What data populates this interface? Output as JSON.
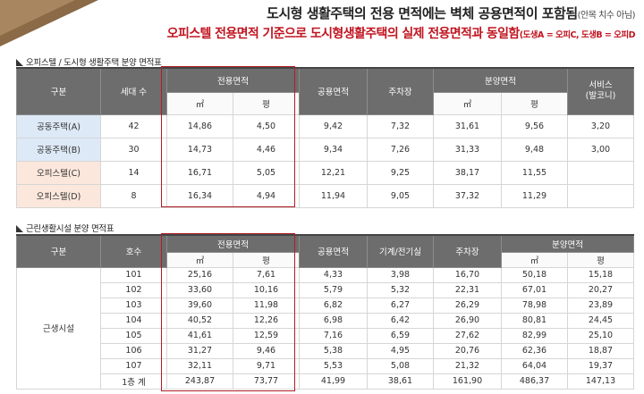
{
  "header": {
    "line1": "도시형 생활주택의 전용 면적에는 벽체 공용면적이 포함됨",
    "line1_note": "(안목 치수 아님)",
    "line2": "오피스텔 전용면적 기준으로 도시형생활주택의 실제 전용면적과 동일함",
    "line2_note": "(도생A = 오피C, 도생B = 오피D"
  },
  "table1": {
    "title": "오피스텔 / 도시형 생활주택 분양 면적표",
    "headers": {
      "col_type": "구분",
      "col_units": "세대 수",
      "col_excl": "전용면적",
      "col_common": "공용면적",
      "col_parking": "주차장",
      "col_sale": "분양면적",
      "col_service": "서비스\n(발코니)",
      "unit_m2": "㎡",
      "unit_py": "평"
    },
    "rows": [
      {
        "type": "공동주택(A)",
        "units": "42",
        "excl_m2": "14,86",
        "excl_py": "4,50",
        "common": "9,42",
        "parking": "7,32",
        "sale_m2": "31,61",
        "sale_py": "9,56",
        "service": "3,20"
      },
      {
        "type": "공동주택(B)",
        "units": "30",
        "excl_m2": "14,73",
        "excl_py": "4,46",
        "common": "9,34",
        "parking": "7,26",
        "sale_m2": "31,33",
        "sale_py": "9,48",
        "service": "3,00"
      },
      {
        "type": "오피스텔(C)",
        "units": "14",
        "excl_m2": "16,71",
        "excl_py": "5,05",
        "common": "12,21",
        "parking": "9,25",
        "sale_m2": "38,17",
        "sale_py": "11,55",
        "service": ""
      },
      {
        "type": "오피스텔(D)",
        "units": "8",
        "excl_m2": "16,34",
        "excl_py": "4,94",
        "common": "11,94",
        "parking": "9,05",
        "sale_m2": "37,32",
        "sale_py": "11,29",
        "service": ""
      }
    ],
    "row_colors": [
      "#dde9f6",
      "#dde9f6",
      "#fbe7dc",
      "#fbe7dc"
    ]
  },
  "table2": {
    "title": "근린생활시설 분양 면적표",
    "headers": {
      "col_type": "구분",
      "col_room": "호수",
      "col_excl": "전용면적",
      "col_common": "공용면적",
      "col_mech": "기계/전기실",
      "col_parking": "주차장",
      "col_sale": "분양면적",
      "unit_m2": "㎡",
      "unit_py": "평"
    },
    "group_label": "근생시설",
    "rows": [
      {
        "room": "101",
        "excl_m2": "25,16",
        "excl_py": "7,61",
        "common": "4,33",
        "mech": "3,98",
        "parking": "16,70",
        "sale_m2": "50,18",
        "sale_py": "15,18"
      },
      {
        "room": "102",
        "excl_m2": "33,60",
        "excl_py": "10,16",
        "common": "5,79",
        "mech": "5,32",
        "parking": "22,31",
        "sale_m2": "67,01",
        "sale_py": "20,27"
      },
      {
        "room": "103",
        "excl_m2": "39,60",
        "excl_py": "11,98",
        "common": "6,82",
        "mech": "6,27",
        "parking": "26,29",
        "sale_m2": "78,98",
        "sale_py": "23,89"
      },
      {
        "room": "104",
        "excl_m2": "40,52",
        "excl_py": "12,26",
        "common": "6,98",
        "mech": "6,42",
        "parking": "26,90",
        "sale_m2": "80,81",
        "sale_py": "24,45"
      },
      {
        "room": "105",
        "excl_m2": "41,61",
        "excl_py": "12,59",
        "common": "7,16",
        "mech": "6,59",
        "parking": "27,62",
        "sale_m2": "82,99",
        "sale_py": "25,10"
      },
      {
        "room": "106",
        "excl_m2": "31,27",
        "excl_py": "9,46",
        "common": "5,38",
        "mech": "4,95",
        "parking": "20,76",
        "sale_m2": "62,36",
        "sale_py": "18,87"
      },
      {
        "room": "107",
        "excl_m2": "32,11",
        "excl_py": "9,71",
        "common": "5,53",
        "mech": "5,08",
        "parking": "21,32",
        "sale_m2": "64,04",
        "sale_py": "19,37"
      },
      {
        "room": "1층 계",
        "excl_m2": "243,87",
        "excl_py": "73,77",
        "common": "41,99",
        "mech": "38,61",
        "parking": "161,90",
        "sale_m2": "486,37",
        "sale_py": "147,13"
      }
    ]
  },
  "colors": {
    "header_dark": "#6d6d6d",
    "accent_red": "#c0141f",
    "highlight_box": "#b31c25",
    "corner_brown": "#8a6a47"
  }
}
